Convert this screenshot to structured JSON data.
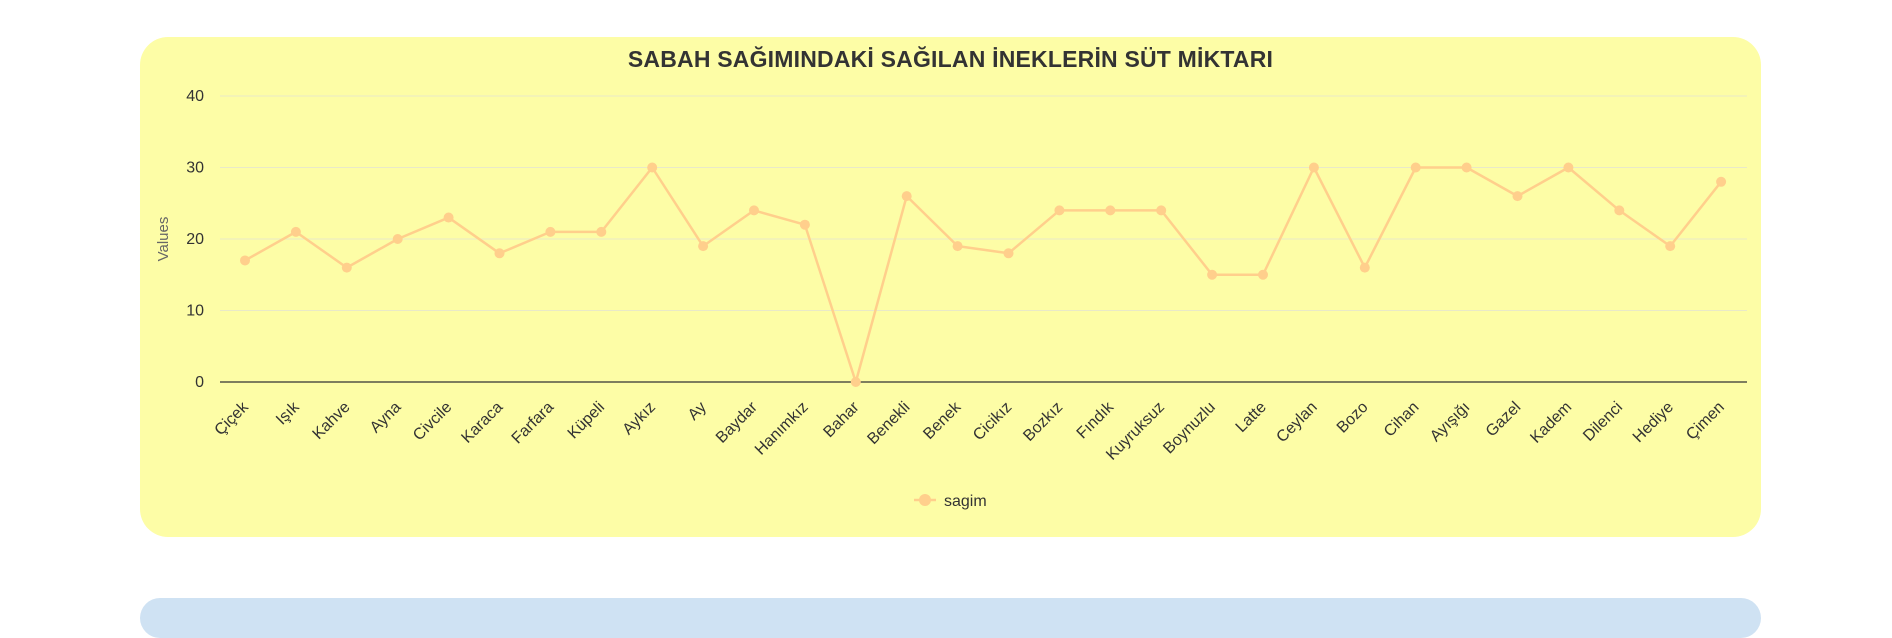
{
  "chart_data": {
    "type": "line",
    "title": "SABAH SAĞIMINDAKİ SAĞILAN İNEKLERİN SÜT MİKTARI",
    "xlabel": "",
    "ylabel": "Values",
    "ylim": [
      0,
      40
    ],
    "yticks": [
      0,
      10,
      20,
      30,
      40
    ],
    "grid": true,
    "legend_position": "bottom",
    "colors": {
      "line": "#ffcf8c",
      "background": "#fdfda6",
      "grid": "#e9e9c8",
      "axis": "#333333"
    },
    "categories": [
      "Çiçek",
      "Işık",
      "Kahve",
      "Ayna",
      "Civcile",
      "Karaca",
      "Farfara",
      "Küpeli",
      "Aykız",
      "Ay",
      "Baydar",
      "Hanımkız",
      "Bahar",
      "Benekli",
      "Benek",
      "Cicikız",
      "Bozkız",
      "Fındık",
      "Kuyruksuz",
      "Boynuzlu",
      "Latte",
      "Ceylan",
      "Bozo",
      "Cihan",
      "Ayışığı",
      "Gazel",
      "Kadem",
      "Dilenci",
      "Hediye",
      "Çimen"
    ],
    "series": [
      {
        "name": "sagim",
        "values": [
          17,
          21,
          16,
          20,
          23,
          18,
          21,
          21,
          30,
          19,
          24,
          22,
          0,
          26,
          19,
          18,
          24,
          24,
          24,
          15,
          15,
          30,
          16,
          30,
          30,
          26,
          30,
          24,
          19,
          28
        ]
      }
    ]
  }
}
